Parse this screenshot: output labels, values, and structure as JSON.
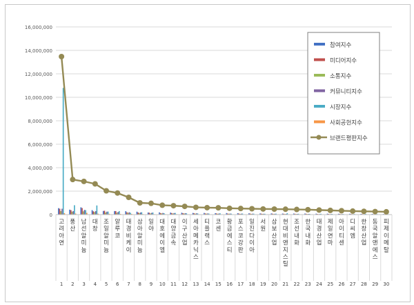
{
  "chart_data": {
    "type": "bar",
    "ylim": [
      0,
      16000000
    ],
    "yticks": [
      "0",
      "2,000,000",
      "4,000,000",
      "6,000,000",
      "8,000,000",
      "10,000,000",
      "12,000,000",
      "14,000,000",
      "16,000,000"
    ],
    "grid": "horizontal",
    "legend_position": "top-right",
    "categories": [
      "고려아연",
      "풍산",
      "남선알미늄",
      "대창",
      "조일알미늄",
      "알루코",
      "태경비케이",
      "삼아알미늄",
      "일야",
      "대호에이엘",
      "대양금속",
      "이구산업",
      "세아메카닉스",
      "티플랙스",
      "코센",
      "황금에스티",
      "포스코강판",
      "일진다이아",
      "서원",
      "삼보산업",
      "현대비앤지스틸",
      "조선내화",
      "한국내화",
      "태경산업",
      "제일연마",
      "아이티센",
      "디씨엠",
      "한창산업",
      "동국알앤에스",
      "피제이메탈"
    ],
    "indices": [
      "1",
      "2",
      "3",
      "4",
      "5",
      "6",
      "7",
      "8",
      "9",
      "10",
      "11",
      "12",
      "13",
      "14",
      "15",
      "16",
      "17",
      "18",
      "19",
      "20",
      "21",
      "22",
      "23",
      "24",
      "25",
      "26",
      "27",
      "28",
      "29",
      "30"
    ],
    "series": [
      {
        "name": "참여지수",
        "type": "bar",
        "color": "#4472c4",
        "values": [
          550000,
          420000,
          620000,
          380000,
          310000,
          300000,
          290000,
          250000,
          180000,
          190000,
          170000,
          160000,
          140000,
          140000,
          120000,
          130000,
          120000,
          110000,
          100000,
          100000,
          90000,
          90000,
          90000,
          80000,
          80000,
          70000,
          70000,
          60000,
          60000,
          50000
        ]
      },
      {
        "name": "미디어지수",
        "type": "bar",
        "color": "#c0504d",
        "values": [
          500000,
          380000,
          560000,
          280000,
          330000,
          300000,
          200000,
          180000,
          160000,
          130000,
          130000,
          120000,
          110000,
          100000,
          100000,
          90000,
          90000,
          90000,
          80000,
          80000,
          70000,
          70000,
          70000,
          60000,
          60000,
          60000,
          50000,
          50000,
          40000,
          40000
        ]
      },
      {
        "name": "소통지수",
        "type": "bar",
        "color": "#9bbb59",
        "values": [
          300000,
          250000,
          280000,
          220000,
          180000,
          160000,
          150000,
          130000,
          100000,
          100000,
          90000,
          90000,
          80000,
          80000,
          70000,
          70000,
          60000,
          60000,
          60000,
          50000,
          50000,
          50000,
          50000,
          40000,
          40000,
          40000,
          40000,
          30000,
          30000,
          30000
        ]
      },
      {
        "name": "커뮤니티지수",
        "type": "bar",
        "color": "#8064a2",
        "values": [
          500000,
          300000,
          400000,
          300000,
          250000,
          220000,
          200000,
          180000,
          150000,
          140000,
          130000,
          120000,
          110000,
          100000,
          90000,
          90000,
          80000,
          80000,
          70000,
          70000,
          60000,
          60000,
          60000,
          50000,
          50000,
          50000,
          40000,
          40000,
          40000,
          30000
        ]
      },
      {
        "name": "시장지수",
        "type": "bar",
        "color": "#4bacc6",
        "values": [
          10800000,
          800000,
          380000,
          780000,
          260000,
          300000,
          150000,
          200000,
          180000,
          120000,
          140000,
          110000,
          100000,
          90000,
          110000,
          80000,
          90000,
          80000,
          70000,
          80000,
          120000,
          70000,
          60000,
          70000,
          60000,
          50000,
          50000,
          60000,
          50000,
          40000
        ]
      },
      {
        "name": "사회공헌지수",
        "type": "bar",
        "color": "#f79646",
        "values": [
          120000,
          90000,
          150000,
          80000,
          70000,
          60000,
          60000,
          50000,
          40000,
          40000,
          40000,
          30000,
          30000,
          30000,
          30000,
          30000,
          20000,
          20000,
          20000,
          20000,
          20000,
          20000,
          20000,
          20000,
          20000,
          10000,
          10000,
          10000,
          10000,
          10000
        ]
      },
      {
        "name": "브랜드평판지수",
        "type": "line",
        "color": "#948a54",
        "values": [
          13470000,
          2990000,
          2830000,
          2620000,
          2030000,
          1840000,
          1470000,
          1000000,
          960000,
          800000,
          760000,
          700000,
          620000,
          590000,
          580000,
          540000,
          520000,
          500000,
          480000,
          470000,
          460000,
          440000,
          420000,
          390000,
          360000,
          330000,
          300000,
          280000,
          260000,
          240000
        ]
      }
    ]
  }
}
